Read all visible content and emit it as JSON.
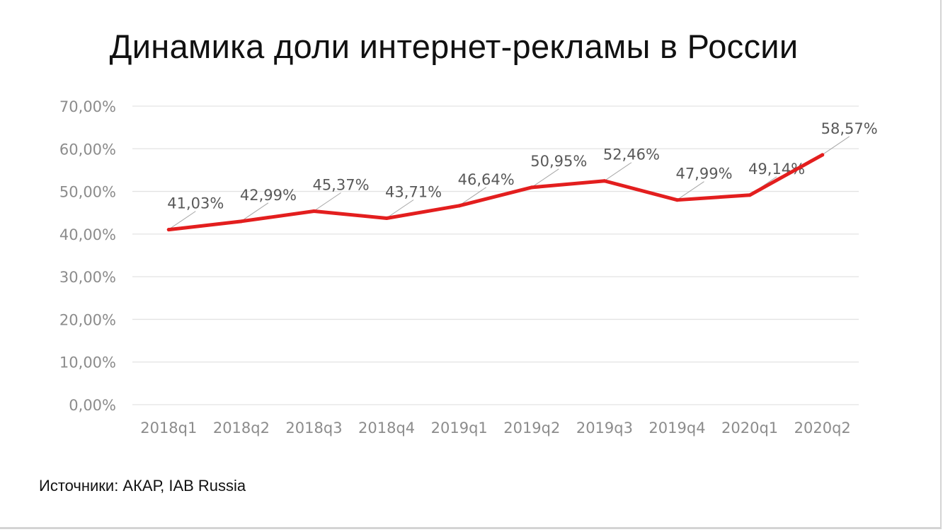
{
  "title": "Динамика доли интернет-рекламы в России",
  "source": "Источники: АКАР, IAB Russia",
  "colors": {
    "line": "#e31e1e",
    "grid": "#e3e3e3",
    "tick_text": "#8c8c8c",
    "label_text": "#595959",
    "leader": "#a6a6a6"
  },
  "chart_data": {
    "type": "line",
    "title": "Динамика доли интернет-рекламы в России",
    "xlabel": "",
    "ylabel": "",
    "categories": [
      "2018q1",
      "2018q2",
      "2018q3",
      "2018q4",
      "2019q1",
      "2019q2",
      "2019q3",
      "2019q4",
      "2020q1",
      "2020q2"
    ],
    "series": [
      {
        "values": [
          41.03,
          42.99,
          45.37,
          43.71,
          46.64,
          50.95,
          52.46,
          47.99,
          49.14,
          58.57
        ]
      }
    ],
    "data_labels": [
      "41,03%",
      "42,99%",
      "45,37%",
      "43,71%",
      "46,64%",
      "50,95%",
      "52,46%",
      "47,99%",
      "49,14%",
      "58,57%"
    ],
    "ylim": [
      0,
      70
    ],
    "yticks": [
      0,
      10,
      20,
      30,
      40,
      50,
      60,
      70
    ],
    "ytick_labels": [
      "0,00%",
      "10,00%",
      "20,00%",
      "30,00%",
      "40,00%",
      "50,00%",
      "60,00%",
      "70,00%"
    ],
    "grid": true,
    "legend": "none"
  }
}
